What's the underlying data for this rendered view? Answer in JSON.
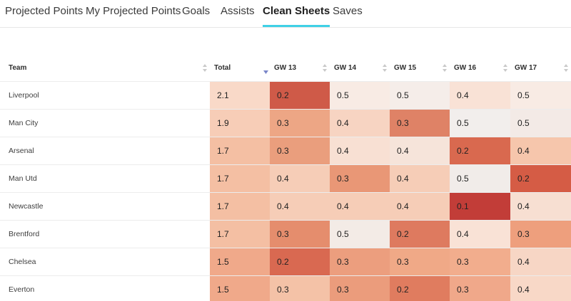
{
  "tabs": [
    {
      "label": "Projected Points",
      "active": false
    },
    {
      "label": "My Projected Points",
      "active": false
    },
    {
      "label": "Goals",
      "active": false
    },
    {
      "label": "Assists",
      "active": false
    },
    {
      "label": "Clean Sheets",
      "active": true
    },
    {
      "label": "Saves",
      "active": false
    }
  ],
  "table": {
    "columns": [
      "Team",
      "Total",
      "GW 13",
      "GW 14",
      "GW 15",
      "GW 16",
      "GW 17"
    ],
    "sorted_column": "Total",
    "rows": [
      {
        "team": "Liverpool",
        "total": "2.1",
        "gw": [
          "0.2",
          "0.5",
          "0.5",
          "0.4",
          "0.5"
        ]
      },
      {
        "team": "Man City",
        "total": "1.9",
        "gw": [
          "0.3",
          "0.4",
          "0.3",
          "0.5",
          "0.5"
        ]
      },
      {
        "team": "Arsenal",
        "total": "1.7",
        "gw": [
          "0.3",
          "0.4",
          "0.4",
          "0.2",
          "0.4"
        ]
      },
      {
        "team": "Man Utd",
        "total": "1.7",
        "gw": [
          "0.4",
          "0.3",
          "0.4",
          "0.5",
          "0.2"
        ]
      },
      {
        "team": "Newcastle",
        "total": "1.7",
        "gw": [
          "0.4",
          "0.4",
          "0.4",
          "0.1",
          "0.4"
        ]
      },
      {
        "team": "Brentford",
        "total": "1.7",
        "gw": [
          "0.3",
          "0.5",
          "0.2",
          "0.4",
          "0.3"
        ]
      },
      {
        "team": "Chelsea",
        "total": "1.5",
        "gw": [
          "0.2",
          "0.3",
          "0.3",
          "0.3",
          "0.4"
        ]
      },
      {
        "team": "Everton",
        "total": "1.5",
        "gw": [
          "0.3",
          "0.3",
          "0.2",
          "0.3",
          "0.4"
        ]
      }
    ],
    "cell_colors": [
      [
        "#f9d9c8",
        "#cf5a48",
        "#f8ebe4",
        "#f5ede9",
        "#f9e2d6",
        "#f8ebe4"
      ],
      [
        "#f7cdb7",
        "#eda685",
        "#f7d4c2",
        "#df8266",
        "#f2eeec",
        "#f3eae6"
      ],
      [
        "#f4bfa3",
        "#ea9e7d",
        "#f8e0d3",
        "#f6e4da",
        "#d9694f",
        "#f6c6ac"
      ],
      [
        "#f4bfa3",
        "#f6cdb7",
        "#e99776",
        "#f6cdb7",
        "#f1ece9",
        "#d55c45"
      ],
      [
        "#f4bfa3",
        "#f6cdb7",
        "#f6cdb7",
        "#f6cdb7",
        "#c23d38",
        "#f7dfd2"
      ],
      [
        "#f4bfa3",
        "#e58d6d",
        "#f3ebe6",
        "#de7a5f",
        "#f9e2d6",
        "#ee9f7d"
      ],
      [
        "#f0a98a",
        "#d96951",
        "#ec9e7e",
        "#f0a987",
        "#f2ad8d",
        "#f7d6c5"
      ],
      [
        "#f0a98a",
        "#f4c2a7",
        "#eb9c7c",
        "#e07c5f",
        "#f0a88a",
        "#f8d8c7"
      ]
    ]
  }
}
